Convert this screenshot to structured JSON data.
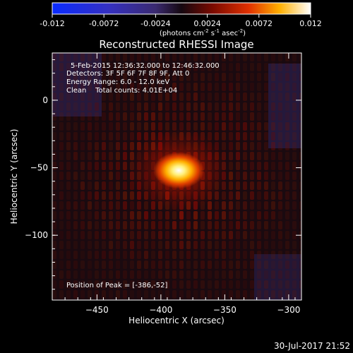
{
  "chart_data": {
    "type": "heatmap",
    "title": "Reconstructed RHESSI Image",
    "xlabel": "Heliocentric X (arcsec)",
    "ylabel": "Heliocentric Y (arcsec)",
    "xlim": [
      -485,
      -290
    ],
    "ylim": [
      -148,
      35
    ],
    "xticks": [
      -450,
      -400,
      -350,
      -300
    ],
    "yticks": [
      0,
      -50,
      -100
    ],
    "colorbar": {
      "min": -0.012,
      "max": 0.012,
      "ticks": [
        "-0.012",
        "-0.0072",
        "-0.0024",
        "0.0024",
        "0.0072",
        "0.012"
      ],
      "unit_label_parts": [
        "(photons cm",
        "-2",
        " s",
        "-1",
        " asec",
        "-2",
        ")"
      ]
    },
    "annotations": {
      "time_range": "5-Feb-2015 12:36:32.000 to 12:46:32.000",
      "detectors": "Detectors: 3F 5F 6F 7F 8F 9F, Att 0",
      "energy": "Energy Range: 6.0 - 12.0 keV",
      "clean": "Clean    Total counts: 4.01E+04",
      "peak": "Position of Peak = [-386,-52]"
    },
    "peak": {
      "x": -386,
      "y": -52
    },
    "footer_date": "30-Jul-2017 21:52"
  }
}
